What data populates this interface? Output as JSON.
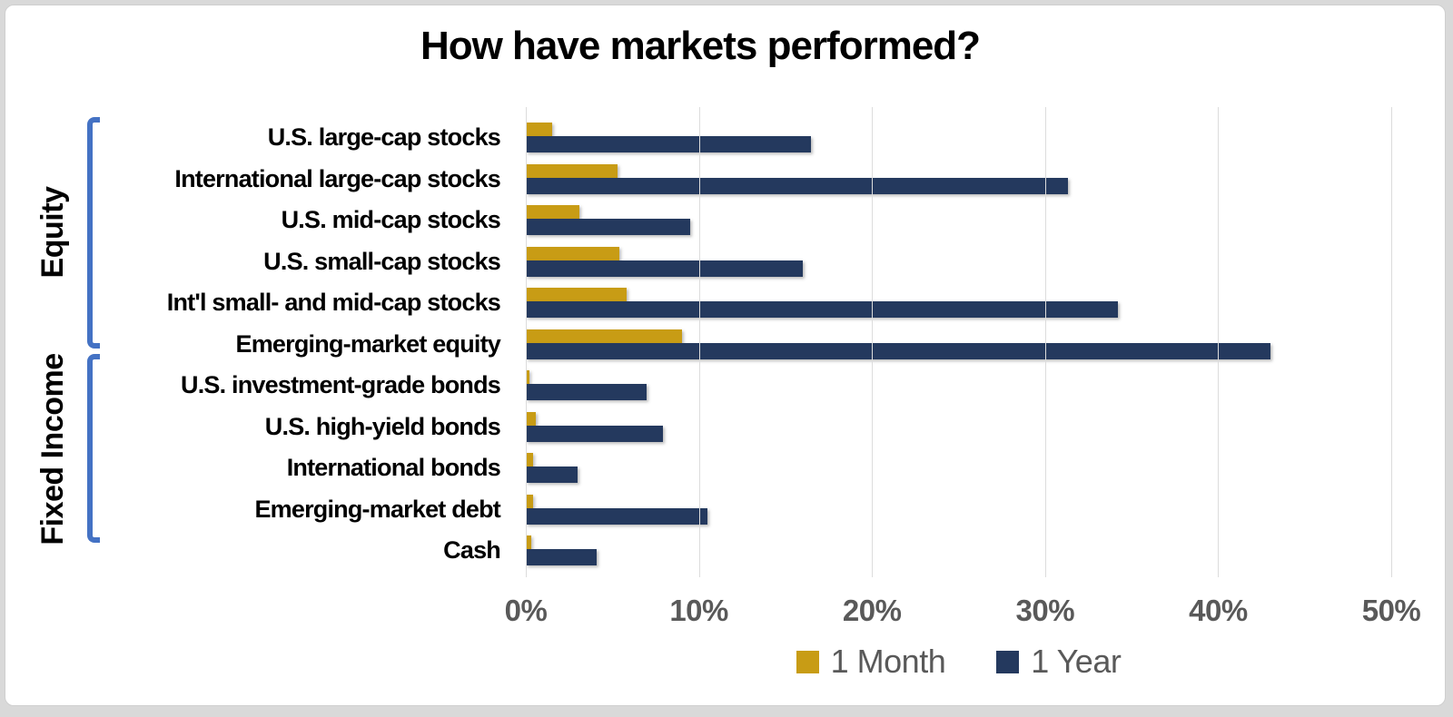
{
  "title": "How have markets performed?",
  "groups": [
    {
      "label": "Equity",
      "row_count": 6
    },
    {
      "label": "Fixed Income",
      "row_count": 5
    }
  ],
  "legend": [
    {
      "label": "1 Month",
      "color": "#C89C15"
    },
    {
      "label": "1 Year",
      "color": "#24395E"
    }
  ],
  "x_axis": {
    "ticks": [
      "0%",
      "10%",
      "20%",
      "30%",
      "40%",
      "50%"
    ],
    "max": 50
  },
  "colors": {
    "one_month_bar": "#C89C15",
    "one_year_bar": "#24395E",
    "bracket_blue": "#4472C4",
    "axis_text_gray": "#595959",
    "gridline_gray": "#DCDCDC",
    "card_background": "#FFFFFF",
    "frame_gray": "#D9D9D9"
  },
  "chart_data": {
    "type": "bar",
    "orientation": "horizontal",
    "title": "How have markets performed?",
    "categories": [
      "U.S. large-cap stocks",
      "International large-cap stocks",
      "U.S. mid-cap stocks",
      "U.S. small-cap stocks",
      "Int'l small- and mid-cap stocks",
      "Emerging-market equity",
      "U.S. investment-grade bonds",
      "U.S. high-yield bonds",
      "International bonds",
      "Emerging-market debt",
      "Cash"
    ],
    "category_groups": [
      {
        "label": "Equity",
        "span": [
          0,
          5
        ]
      },
      {
        "label": "Fixed Income",
        "span": [
          6,
          10
        ]
      }
    ],
    "series": [
      {
        "name": "1 Month",
        "color": "#C89C15",
        "values": [
          1.5,
          5.3,
          3.1,
          5.4,
          5.8,
          9.0,
          0.2,
          0.6,
          0.4,
          0.4,
          0.3
        ]
      },
      {
        "name": "1 Year",
        "color": "#24395E",
        "values": [
          16.5,
          31.3,
          9.5,
          16.0,
          34.2,
          43.0,
          7.0,
          7.9,
          3.0,
          10.5,
          4.1
        ]
      }
    ],
    "xlim": [
      0,
      50
    ],
    "xticklabels": [
      "0%",
      "10%",
      "20%",
      "30%",
      "40%",
      "50%"
    ],
    "grid": true,
    "legend_position": "bottom"
  }
}
